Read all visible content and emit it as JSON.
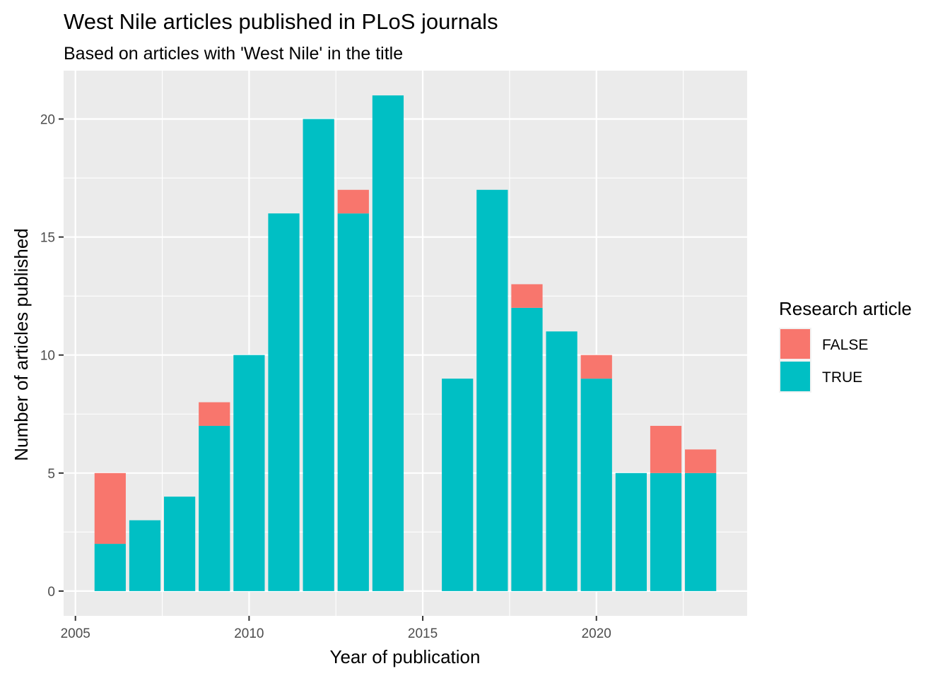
{
  "chart_data": {
    "type": "bar",
    "stacked": true,
    "title": "West Nile articles published in PLoS journals",
    "subtitle": "Based on articles with 'West Nile' in the title",
    "xlabel": "Year of publication",
    "ylabel": "Number of articles published",
    "x": [
      2006,
      2007,
      2008,
      2009,
      2010,
      2011,
      2012,
      2013,
      2014,
      2016,
      2017,
      2018,
      2019,
      2020,
      2021,
      2022,
      2023
    ],
    "series": [
      {
        "name": "TRUE",
        "color": "#00BFC4",
        "values": [
          2,
          3,
          4,
          7,
          10,
          16,
          20,
          16,
          21,
          9,
          17,
          12,
          11,
          9,
          5,
          5,
          5
        ]
      },
      {
        "name": "FALSE",
        "color": "#F8766D",
        "values": [
          3,
          0,
          0,
          1,
          0,
          0,
          0,
          1,
          0,
          0,
          0,
          1,
          0,
          1,
          0,
          2,
          1
        ]
      }
    ],
    "xlim": [
      2004.66,
      2024.34
    ],
    "ylim": [
      -1.05,
      22.05
    ],
    "xticks": [
      2005,
      2010,
      2015,
      2020
    ],
    "xtick_labels": [
      "2005",
      "2010",
      "2015",
      "2020"
    ],
    "yticks": [
      0,
      5,
      10,
      15,
      20
    ],
    "ytick_labels": [
      "0",
      "5",
      "10",
      "15",
      "20"
    ],
    "grid": true,
    "panel_background": "#EBEBEB",
    "legend": {
      "title": "Research article",
      "position": "right",
      "entries": [
        {
          "label": "FALSE",
          "color": "#F8766D"
        },
        {
          "label": "TRUE",
          "color": "#00BFC4"
        }
      ]
    }
  }
}
